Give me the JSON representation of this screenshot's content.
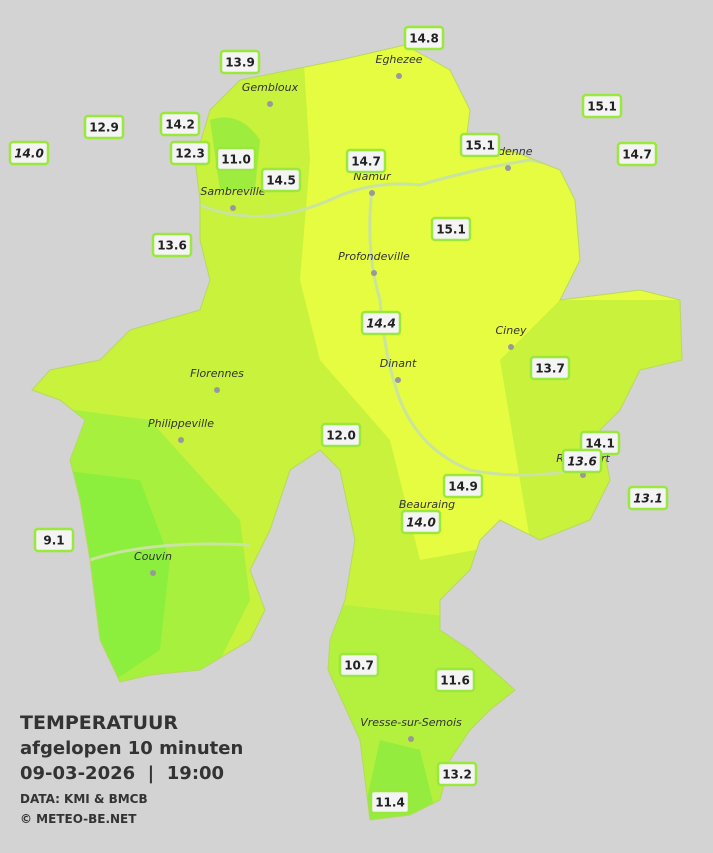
{
  "title": {
    "heading": "TEMPERATUUR",
    "subtitle": "afgelopen 10 minuten",
    "datetime": "09-03-2026  |  19:00",
    "source": "DATA: KMI & BMCB",
    "copyright": "© METEO-BE.NET"
  },
  "towns": [
    "Eghezee",
    "Gembloux",
    "Andenne",
    "Namur",
    "Sambreville",
    "Profondeville",
    "Ciney",
    "Florennes",
    "Dinant",
    "Philippeville",
    "Rochefort",
    "Beauraing",
    "Couvin",
    "Vresse-sur-Semois"
  ],
  "temperatures": [
    "14.8",
    "13.9",
    "15.1",
    "12.9",
    "14.2",
    "14.0",
    "12.3",
    "11.0",
    "14.7",
    "15.1",
    "14.7",
    "14.5",
    "13.6",
    "15.1",
    "14.4",
    "13.7",
    "12.0",
    "14.1",
    "13.6",
    "14.9",
    "13.1",
    "14.0",
    "9.1",
    "10.7",
    "11.6",
    "13.2",
    "11.4"
  ]
}
